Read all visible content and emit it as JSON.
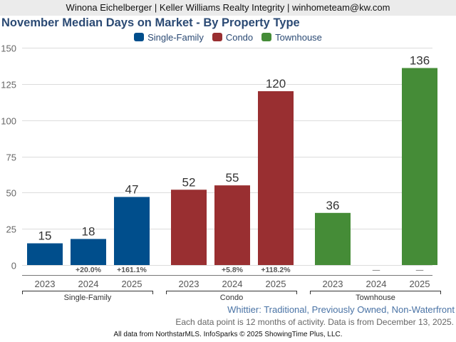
{
  "header": {
    "text": "Winona Eichelberger | Keller Williams Realty Integrity | winhometeam@kw.com"
  },
  "chart_data": {
    "type": "bar",
    "title": "November Median Days on Market - By Property Type",
    "xlabel": "",
    "ylabel": "",
    "ylim": [
      0,
      150
    ],
    "yticks": [
      0,
      25,
      50,
      75,
      100,
      125,
      150
    ],
    "grid": true,
    "legend_position": "top-center",
    "groups": [
      {
        "name": "Single-Family",
        "color": "#004e8c",
        "categories": [
          "2023",
          "2024",
          "2025"
        ],
        "values": [
          15,
          18,
          47
        ],
        "changes": [
          "",
          "+20.0%",
          "+161.1%"
        ]
      },
      {
        "name": "Condo",
        "color": "#992f31",
        "categories": [
          "2023",
          "2024",
          "2025"
        ],
        "values": [
          52,
          55,
          120
        ],
        "changes": [
          "",
          "+5.8%",
          "+118.2%"
        ]
      },
      {
        "name": "Townhouse",
        "color": "#458c37",
        "categories": [
          "2023",
          "2024",
          "2025"
        ],
        "values": [
          36,
          null,
          136
        ],
        "changes": [
          "",
          "—",
          "—"
        ]
      }
    ]
  },
  "subtitle": "Whittier: Traditional, Previously Owned, Non-Waterfront",
  "note": "Each data point is 12 months of activity. Data is from December 13, 2025.",
  "footer": "All data from NorthstarMLS. InfoSparks © 2025 ShowingTime Plus, LLC."
}
